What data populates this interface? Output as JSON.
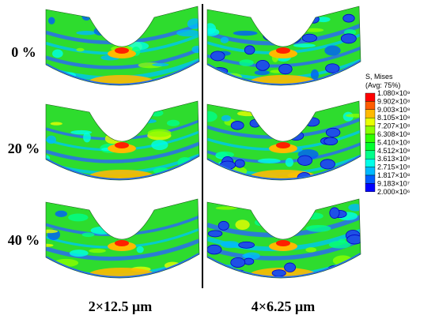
{
  "rows": [
    "0 %",
    "20 %",
    "40 %"
  ],
  "columns": [
    "2×12.5 μm",
    "4×6.25 μm"
  ],
  "legend": {
    "title": "S, Mises",
    "subtitle": "(Avg: 75%)",
    "labels": [
      "1.080×10⁹",
      "9.902×10⁸",
      "9.003×10⁸",
      "8.105×10⁸",
      "7.207×10⁸",
      "6.308×10⁸",
      "5.410×10⁸",
      "4.512×10⁸",
      "3.613×10⁸",
      "2.715×10⁸",
      "1.817×10⁸",
      "9.183×10⁷",
      "2.000×10⁶"
    ],
    "colors": [
      "#ff0000",
      "#ff5d00",
      "#ffb900",
      "#e8ff00",
      "#8bff00",
      "#2eff00",
      "#00ff2e",
      "#00ff8b",
      "#00ffe8",
      "#00b9ff",
      "#005dff",
      "#0000ff"
    ]
  }
}
